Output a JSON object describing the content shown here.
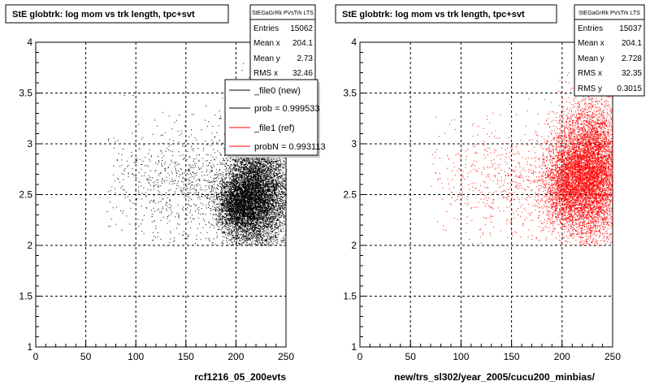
{
  "chart_data": [
    {
      "type": "scatter",
      "title": "StE globtrk: log mom vs trk length, tpc+svt",
      "xlabel": "rcf1216_05_200evts",
      "ylabel": "",
      "xlim": [
        0,
        250
      ],
      "ylim": [
        1,
        4
      ],
      "xticks": [
        "0",
        "50",
        "100",
        "150",
        "200",
        "250"
      ],
      "yticks": [
        "1",
        "1.5",
        "2",
        "2.5",
        "3",
        "3.5",
        "4"
      ],
      "grid": true,
      "marker_color": "#000000",
      "stats": {
        "name": "StEGaGrRk PVsTrk LTS",
        "rows": [
          {
            "label": "Entries",
            "value": "15062"
          },
          {
            "label": "Mean x",
            "value": "204.1"
          },
          {
            "label": "Mean y",
            "value": "2.73"
          },
          {
            "label": "RMS x",
            "value": "32.46"
          }
        ]
      },
      "legend": {
        "placement": "top-right",
        "entries": [
          {
            "text": "_file0 (new)",
            "color": "#000000"
          },
          {
            "text": "prob = 0.999533",
            "color": "#000000"
          },
          {
            "text": "_file1 (ref)",
            "color": "#ff0000"
          },
          {
            "text": "probN = 0.993113",
            "color": "#ff0000"
          }
        ]
      },
      "clusters": [
        {
          "x": 215,
          "y": 2.45,
          "sx": 14,
          "sy": 0.22,
          "n": 4200
        },
        {
          "x": 228,
          "y": 2.62,
          "sx": 18,
          "sy": 0.35,
          "n": 3600
        },
        {
          "x": 200,
          "y": 2.4,
          "sx": 10,
          "sy": 0.14,
          "n": 1500
        },
        {
          "x": 150,
          "y": 2.6,
          "sx": 40,
          "sy": 0.3,
          "n": 900
        }
      ],
      "x_extent": [
        70,
        250
      ],
      "y_extent": [
        2.0,
        3.9
      ]
    },
    {
      "type": "scatter",
      "title": "StE globtrk: log mom vs trk length, tpc+svt",
      "xlabel": "new/trs_sl302/year_2005/cucu200_minbias/",
      "ylabel": "",
      "xlim": [
        0,
        250
      ],
      "ylim": [
        1,
        4
      ],
      "xticks": [
        "0",
        "50",
        "100",
        "150",
        "200",
        "250"
      ],
      "yticks": [
        "1",
        "1.5",
        "2",
        "2.5",
        "3",
        "3.5",
        "4"
      ],
      "grid": true,
      "marker_color": "#ff0000",
      "stats": {
        "name": "StEGaGrRk PVsTrk LTS",
        "rows": [
          {
            "label": "Entries",
            "value": "15037"
          },
          {
            "label": "Mean x",
            "value": "204.1"
          },
          {
            "label": "Mean y",
            "value": "2.728"
          },
          {
            "label": "RMS x",
            "value": "32.35"
          },
          {
            "label": "RMS y",
            "value": "0.3015"
          }
        ]
      },
      "clusters": [
        {
          "x": 218,
          "y": 2.7,
          "sx": 16,
          "sy": 0.3,
          "n": 4500
        },
        {
          "x": 235,
          "y": 2.75,
          "sx": 14,
          "sy": 0.35,
          "n": 3000
        },
        {
          "x": 200,
          "y": 2.55,
          "sx": 10,
          "sy": 0.2,
          "n": 900
        },
        {
          "x": 150,
          "y": 2.6,
          "sx": 40,
          "sy": 0.3,
          "n": 700
        }
      ],
      "x_extent": [
        70,
        250
      ],
      "y_extent": [
        2.0,
        3.9
      ]
    }
  ]
}
